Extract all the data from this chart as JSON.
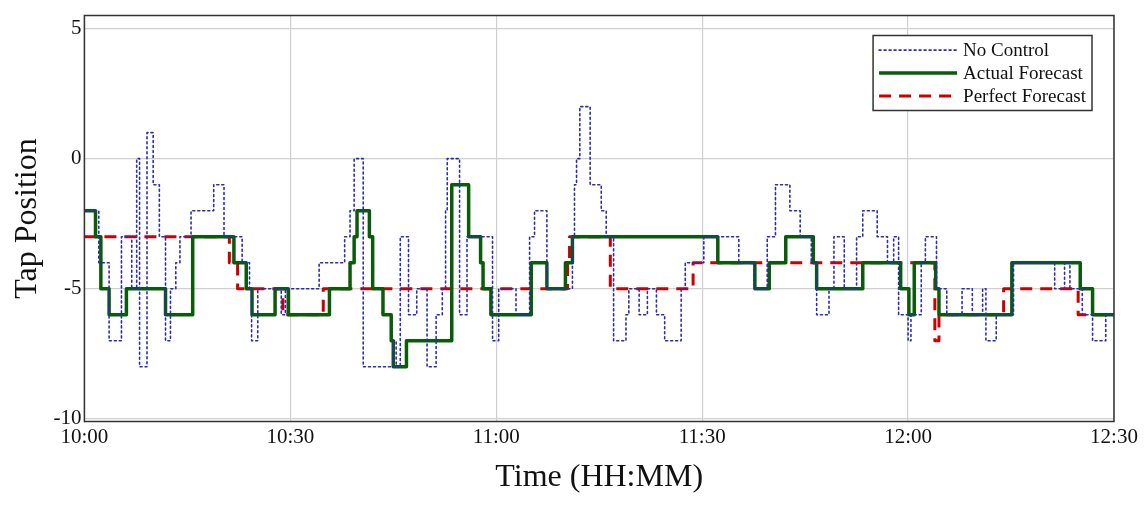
{
  "chart_data": {
    "type": "step",
    "xlabel": "Time (HH:MM)",
    "ylabel": "Tap Position",
    "xlim": [
      10,
      12.5
    ],
    "xticks": [
      {
        "value": 10,
        "label": "10:00"
      },
      {
        "value": 10.5,
        "label": "10:30"
      },
      {
        "value": 11,
        "label": "11:00"
      },
      {
        "value": 11.5,
        "label": "11:30"
      },
      {
        "value": 12,
        "label": "12:00"
      },
      {
        "value": 12.5,
        "label": "12:30"
      }
    ],
    "ylim": [
      -10.1,
      5.5
    ],
    "yticks": [
      -10,
      -5,
      0,
      5
    ],
    "grid": true,
    "legend": "top right",
    "marker": "none",
    "series": [
      {
        "name": "No Control",
        "color": "#2b2bb5",
        "line_style": "dotted",
        "x": [
          10,
          10.035,
          10.06,
          10.09,
          10.115,
          10.127,
          10.134,
          10.152,
          10.167,
          10.182,
          10.197,
          10.209,
          10.222,
          10.232,
          10.259,
          10.314,
          10.339,
          10.383,
          10.401,
          10.406,
          10.421,
          10.478,
          10.488,
          10.57,
          10.632,
          10.645,
          10.655,
          10.677,
          10.75,
          10.757,
          10.767,
          10.787,
          10.807,
          10.832,
          10.854,
          10.869,
          10.877,
          10.881,
          10.911,
          10.929,
          10.991,
          11.006,
          11.048,
          11.081,
          11.093,
          11.123,
          11.185,
          11.19,
          11.195,
          11.203,
          11.228,
          11.255,
          11.267,
          11.285,
          11.315,
          11.322,
          11.347,
          11.367,
          11.389,
          11.409,
          11.449,
          11.459,
          11.504,
          11.589,
          11.626,
          11.658,
          11.678,
          11.713,
          11.738,
          11.765,
          11.778,
          11.808,
          11.82,
          11.845,
          11.875,
          11.89,
          11.925,
          11.95,
          11.965,
          11.977,
          12.0,
          12.007,
          12.032,
          12.042,
          12.069,
          12.094,
          12.131,
          12.156,
          12.181,
          12.189,
          12.214,
          12.256,
          12.356,
          12.38,
          12.393,
          12.423,
          12.448,
          12.48,
          12.5
        ],
        "values": [
          -2,
          -4,
          -7,
          -3,
          -5,
          0,
          -8,
          1,
          -1,
          -3,
          -7,
          -5,
          -4,
          -3,
          -2,
          -1,
          -3,
          -4,
          -5,
          -7,
          -5,
          -6,
          -5,
          -4,
          -3,
          -2,
          0,
          -8,
          -7,
          -8,
          -3,
          -6,
          -5,
          -8,
          -6,
          -5,
          -2,
          0,
          -6,
          -3,
          -7,
          -5,
          -6,
          -3,
          -2,
          -5,
          -3,
          -1,
          0,
          2,
          -1,
          -2,
          -3,
          -7,
          -6,
          -5,
          -6,
          -5,
          -6,
          -7,
          -5,
          -4,
          -3,
          -4,
          -5,
          -3,
          -1,
          -2,
          -3,
          -4,
          -6,
          -5,
          -3,
          -5,
          -3,
          -2,
          -3,
          -4,
          -3,
          -6,
          -7,
          -6,
          -4,
          -3,
          -5,
          -6,
          -5,
          -6,
          -5,
          -7,
          -6,
          -4,
          -5,
          -4,
          -5,
          -6,
          -7,
          -6,
          -6
        ]
      },
      {
        "name": "Actual Forecast",
        "color": "#0a5c0a",
        "line_style": "solid",
        "x": [
          10,
          10.027,
          10.04,
          10.06,
          10.102,
          10.197,
          10.263,
          10.363,
          10.393,
          10.407,
          10.463,
          10.495,
          10.595,
          10.645,
          10.655,
          10.662,
          10.692,
          10.7,
          10.725,
          10.745,
          10.75,
          10.782,
          10.892,
          10.933,
          10.962,
          10.968,
          10.987,
          11.085,
          11.123,
          11.168,
          11.185,
          11.538,
          11.628,
          11.663,
          11.703,
          11.77,
          11.778,
          11.89,
          11.982,
          12.002,
          12.015,
          12.067,
          12.075,
          12.252,
          12.418,
          12.448,
          12.5
        ],
        "values": [
          -2,
          -3,
          -5,
          -6,
          -5,
          -6,
          -3,
          -4,
          -5,
          -6,
          -5,
          -6,
          -5,
          -4,
          -3,
          -2,
          -3,
          -5,
          -6,
          -7,
          -8,
          -7,
          -1,
          -3,
          -4,
          -5,
          -6,
          -4,
          -5,
          -4,
          -3,
          -4,
          -5,
          -4,
          -3,
          -4,
          -5,
          -4,
          -5,
          -6,
          -4,
          -5,
          -6,
          -4,
          -5,
          -6,
          -6
        ]
      },
      {
        "name": "Perfect Forecast",
        "color": "#cc0000",
        "line_style": "dashed",
        "x": [
          10,
          10.352,
          10.372,
          10.482,
          10.58,
          11.173,
          11.178,
          11.277,
          11.478,
          12.065,
          12.075,
          12.232,
          12.413,
          12.5
        ],
        "values": [
          -3,
          -4,
          -5,
          -6,
          -5,
          -4,
          -3,
          -5,
          -4,
          -7,
          -6,
          -5,
          -6,
          -6
        ]
      }
    ]
  }
}
